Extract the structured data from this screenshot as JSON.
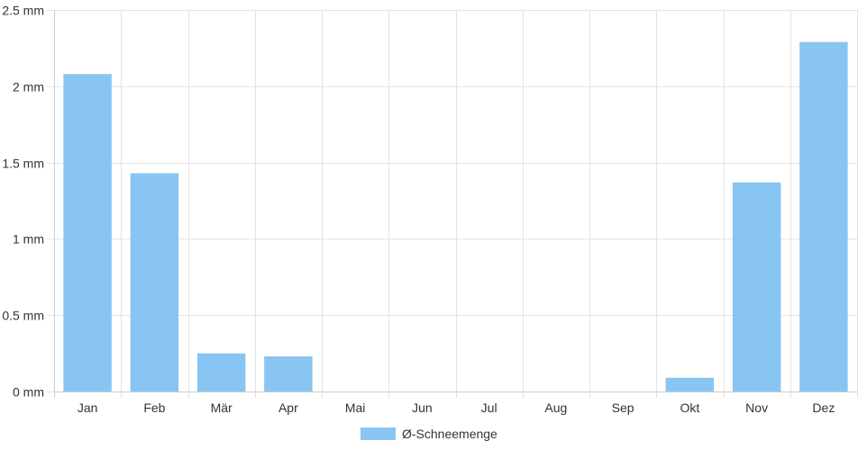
{
  "chart_data": {
    "type": "bar",
    "categories": [
      "Jan",
      "Feb",
      "Mär",
      "Apr",
      "Mai",
      "Jun",
      "Jul",
      "Aug",
      "Sep",
      "Okt",
      "Nov",
      "Dez"
    ],
    "series": [
      {
        "name": "Ø-Schneemenge",
        "values": [
          2.08,
          1.43,
          0.25,
          0.23,
          0,
          0,
          0,
          0,
          0,
          0.09,
          1.37,
          2.29
        ]
      }
    ],
    "ylim": [
      0,
      2.5
    ],
    "y_unit": "mm",
    "y_ticks": [
      {
        "value": 0,
        "label": "0 mm"
      },
      {
        "value": 0.5,
        "label": "0.5 mm"
      },
      {
        "value": 1,
        "label": "1 mm"
      },
      {
        "value": 1.5,
        "label": "1.5 mm"
      },
      {
        "value": 2,
        "label": "2 mm"
      },
      {
        "value": 2.5,
        "label": "2.5 mm"
      }
    ],
    "grid": true,
    "legend_position": "bottom",
    "colors": {
      "bar_fill": "#88c5f2",
      "grid": "#e3e3e3",
      "axis": "#cccccc",
      "text": "#333333"
    }
  }
}
